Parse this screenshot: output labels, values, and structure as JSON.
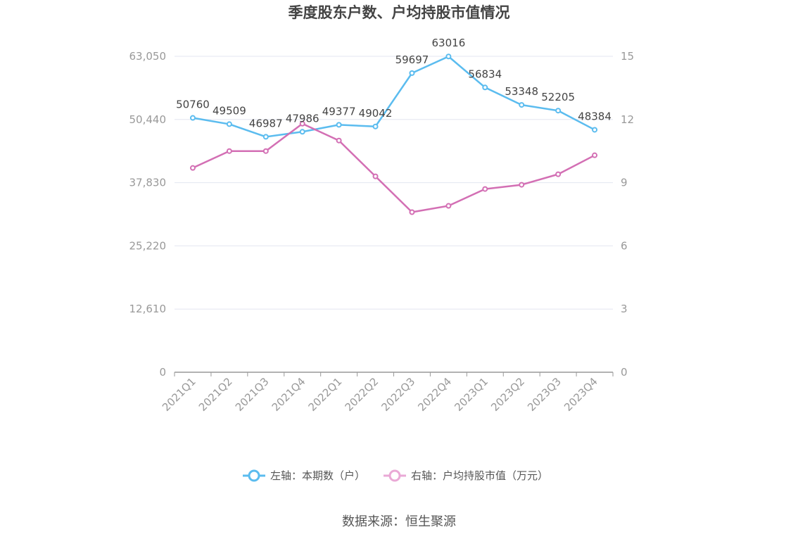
{
  "chart_data": {
    "type": "line",
    "title": "季度股东户数、户均持股市值情况",
    "categories": [
      "2021Q1",
      "2021Q2",
      "2021Q3",
      "2021Q4",
      "2022Q1",
      "2022Q2",
      "2022Q3",
      "2022Q4",
      "2023Q1",
      "2023Q2",
      "2023Q3",
      "2023Q4"
    ],
    "y_left": {
      "ticks": [
        "0",
        "12,610",
        "25,220",
        "37,830",
        "50,440",
        "63,050"
      ],
      "ylim": [
        0,
        63050
      ]
    },
    "y_right": {
      "ticks": [
        "0",
        "3",
        "6",
        "9",
        "12",
        "15"
      ],
      "ylim": [
        0,
        15
      ]
    },
    "series": [
      {
        "name": "左轴：本期数（户）",
        "axis": "left",
        "color": "#5bbcef",
        "values": [
          50760,
          49509,
          46987,
          47986,
          49377,
          49042,
          59697,
          63016,
          56834,
          53348,
          52205,
          48384
        ],
        "labels": [
          "50760",
          "49509",
          "46987",
          "47986",
          "49377",
          "49042",
          "59697",
          "63016",
          "56834",
          "53348",
          "52205",
          "48384"
        ]
      },
      {
        "name": "右轴：户均持股市值（万元）",
        "axis": "right",
        "color": "#d36fb4",
        "values": [
          9.7,
          10.5,
          10.5,
          11.8,
          11.0,
          9.3,
          7.6,
          7.9,
          8.7,
          8.9,
          9.4,
          10.3
        ]
      }
    ],
    "grid": true,
    "legend": "bottom"
  },
  "source": "数据来源：恒生聚源"
}
